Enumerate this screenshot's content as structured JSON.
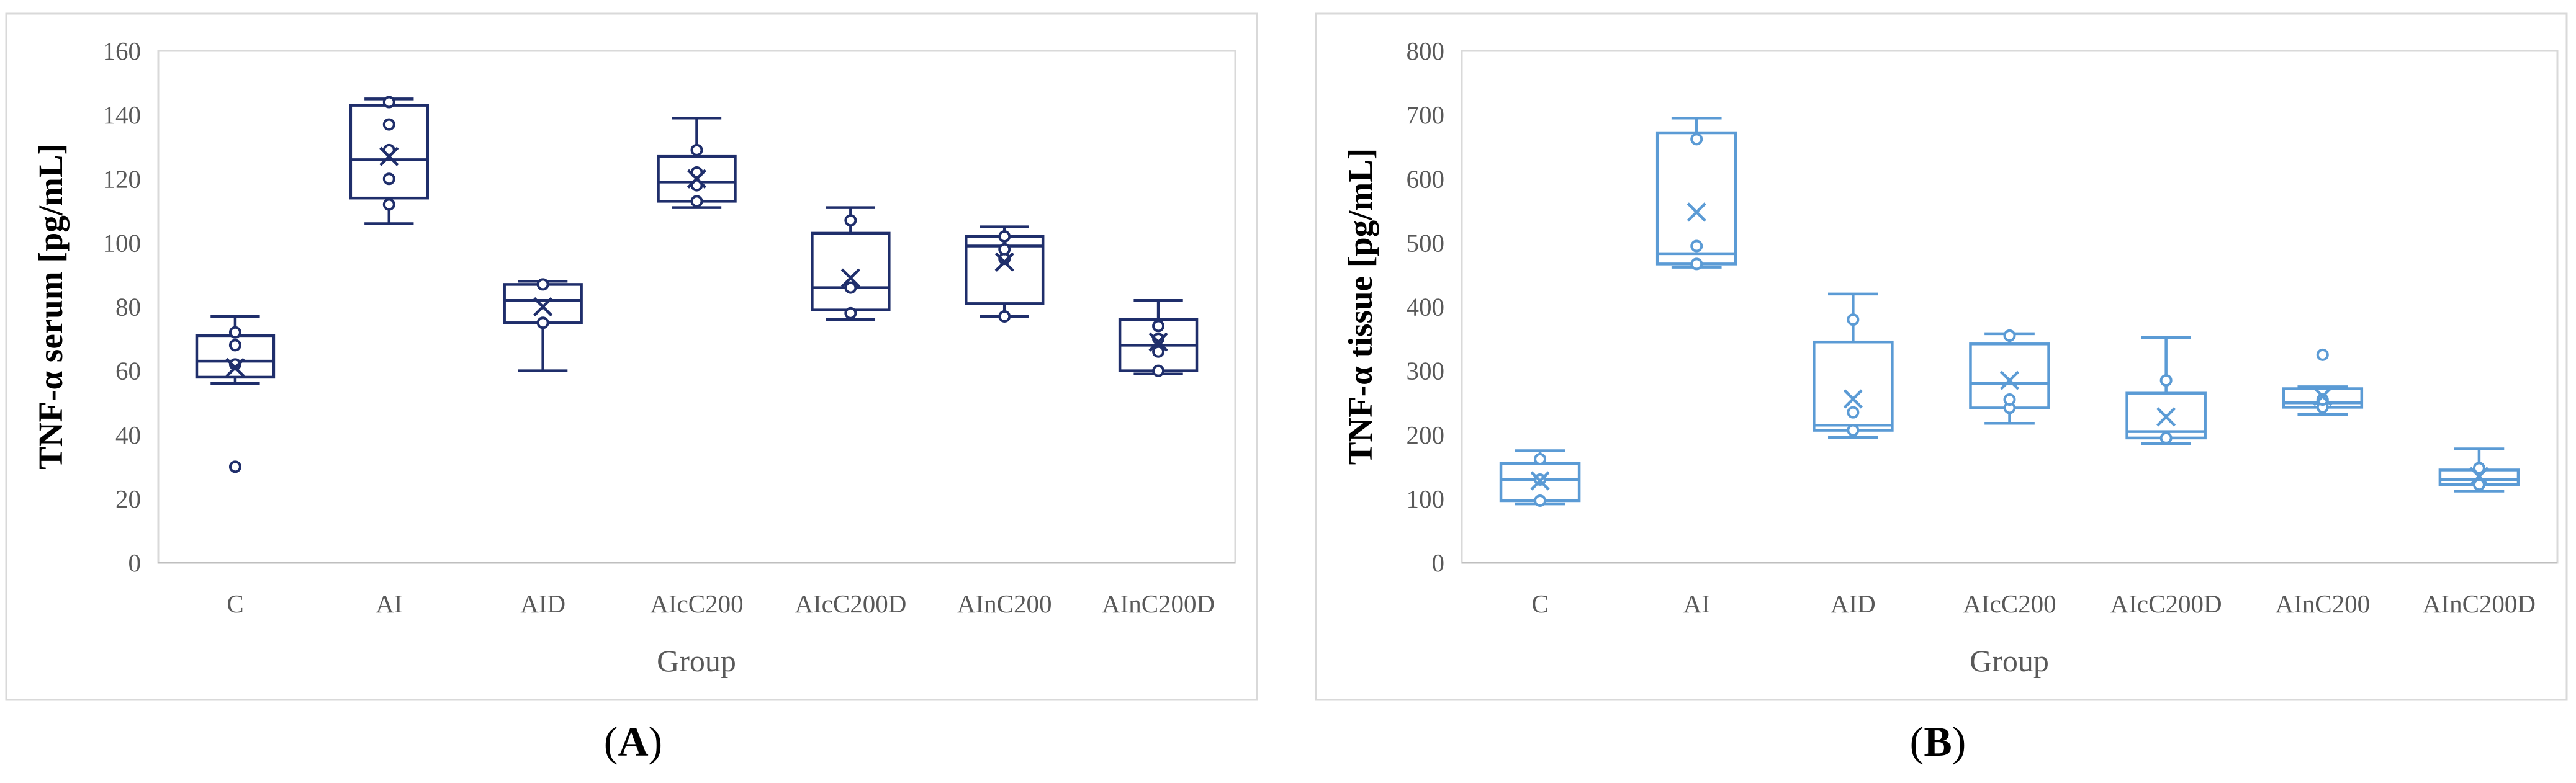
{
  "figure": {
    "panel_labels": [
      "A",
      "B"
    ]
  },
  "chart_data": [
    {
      "type": "box",
      "panel": "A",
      "xlabel": "Group",
      "ylabel": "TNF-α serum [pg/mL]",
      "ylim": [
        0,
        160
      ],
      "yticks": [
        0,
        20,
        40,
        60,
        80,
        100,
        120,
        140,
        160
      ],
      "grid": false,
      "legend": "none",
      "color": "#1f2e6b",
      "categories": [
        "C",
        "AI",
        "AID",
        "AIcC200",
        "AIcC200D",
        "AInC200",
        "AInC200D"
      ],
      "boxes": [
        {
          "min": 56,
          "q1": 58,
          "median": 63,
          "q3": 71,
          "max": 77,
          "mean": 61,
          "points": [
            30,
            62,
            68,
            72
          ]
        },
        {
          "min": 106,
          "q1": 114,
          "median": 126,
          "q3": 143,
          "max": 145,
          "mean": 127,
          "points": [
            112,
            120,
            129,
            137,
            144
          ]
        },
        {
          "min": 60,
          "q1": 75,
          "median": 82,
          "q3": 87,
          "max": 88,
          "mean": 80,
          "points": [
            75,
            87
          ]
        },
        {
          "min": 111,
          "q1": 113,
          "median": 119,
          "q3": 127,
          "max": 139,
          "mean": 120,
          "points": [
            113,
            118,
            122,
            129
          ]
        },
        {
          "min": 76,
          "q1": 79,
          "median": 86,
          "q3": 103,
          "max": 111,
          "mean": 89,
          "points": [
            78,
            86,
            107
          ]
        },
        {
          "min": 77,
          "q1": 81,
          "median": 99,
          "q3": 102,
          "max": 105,
          "mean": 94,
          "points": [
            77,
            95,
            98,
            102
          ]
        },
        {
          "min": 59,
          "q1": 60,
          "median": 68,
          "q3": 76,
          "max": 82,
          "mean": 69,
          "points": [
            60,
            66,
            70,
            74
          ]
        }
      ]
    },
    {
      "type": "box",
      "panel": "B",
      "xlabel": "Group",
      "ylabel": "TNF-α tissue [pg/mL]",
      "ylim": [
        0,
        800
      ],
      "yticks": [
        0,
        100,
        200,
        300,
        400,
        500,
        600,
        700,
        800
      ],
      "grid": false,
      "legend": "none",
      "color": "#5b9bd5",
      "categories": [
        "C",
        "AI",
        "AID",
        "AIcC200",
        "AIcC200D",
        "AInC200",
        "AInC200D"
      ],
      "boxes": [
        {
          "min": 92,
          "q1": 97,
          "median": 130,
          "q3": 155,
          "max": 175,
          "mean": 128,
          "points": [
            97,
            130,
            162
          ]
        },
        {
          "min": 462,
          "q1": 467,
          "median": 483,
          "q3": 672,
          "max": 695,
          "mean": 548,
          "points": [
            467,
            495,
            662
          ]
        },
        {
          "min": 196,
          "q1": 207,
          "median": 215,
          "q3": 345,
          "max": 420,
          "mean": 256,
          "points": [
            207,
            235,
            380
          ]
        },
        {
          "min": 218,
          "q1": 242,
          "median": 280,
          "q3": 342,
          "max": 358,
          "mean": 285,
          "points": [
            242,
            255,
            355
          ]
        },
        {
          "min": 186,
          "q1": 195,
          "median": 205,
          "q3": 265,
          "max": 352,
          "mean": 228,
          "points": [
            195,
            285
          ]
        },
        {
          "min": 232,
          "q1": 243,
          "median": 250,
          "q3": 272,
          "max": 275,
          "mean": 260,
          "points": [
            243,
            255,
            325
          ]
        },
        {
          "min": 112,
          "q1": 122,
          "median": 130,
          "q3": 145,
          "max": 178,
          "mean": 135,
          "points": [
            122,
            148
          ]
        }
      ]
    }
  ]
}
